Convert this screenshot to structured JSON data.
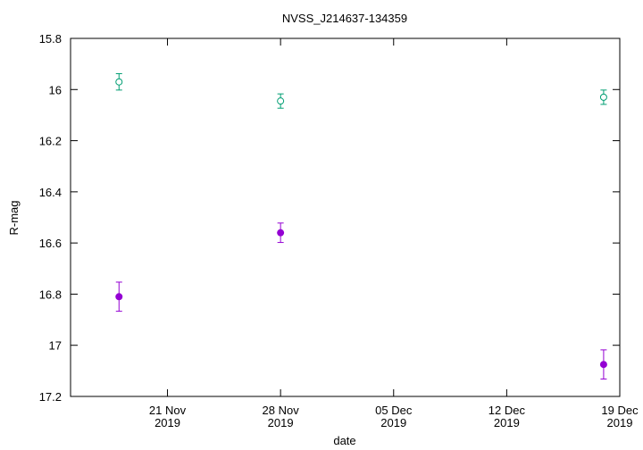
{
  "chart_data": {
    "type": "scatter",
    "title": "NVSS_J214637-134359",
    "x_label": "date",
    "y_label": "R-mag",
    "xlim": [
      "2019-11-15",
      "2019-12-19"
    ],
    "xticks": [
      {
        "value": "2019-11-21",
        "label": "21 Nov\n2019"
      },
      {
        "value": "2019-11-28",
        "label": "28 Nov\n2019"
      },
      {
        "value": "2019-12-05",
        "label": "05 Dec\n2019"
      },
      {
        "value": "2019-12-12",
        "label": "12 Dec\n2019"
      },
      {
        "value": "2019-12-19",
        "label": "19 Dec\n2019"
      }
    ],
    "ylim": [
      15.8,
      17.2
    ],
    "y_inverted": true,
    "yticks": [
      15.8,
      16,
      16.2,
      16.4,
      16.6,
      16.8,
      17,
      17.2
    ],
    "series": [
      {
        "color": "#9400d3",
        "marker": "filled-circle",
        "x": [
          "2019-11-18",
          "2019-11-28",
          "2019-12-18"
        ],
        "values": [
          16.81,
          16.56,
          17.075
        ],
        "errors": [
          0.057,
          0.038,
          0.057
        ]
      },
      {
        "color": "#009e73",
        "marker": "open-circle",
        "x": [
          "2019-11-18",
          "2019-11-28",
          "2019-12-18"
        ],
        "values": [
          15.97,
          16.045,
          16.03
        ],
        "errors": [
          0.032,
          0.028,
          0.028
        ]
      }
    ]
  }
}
